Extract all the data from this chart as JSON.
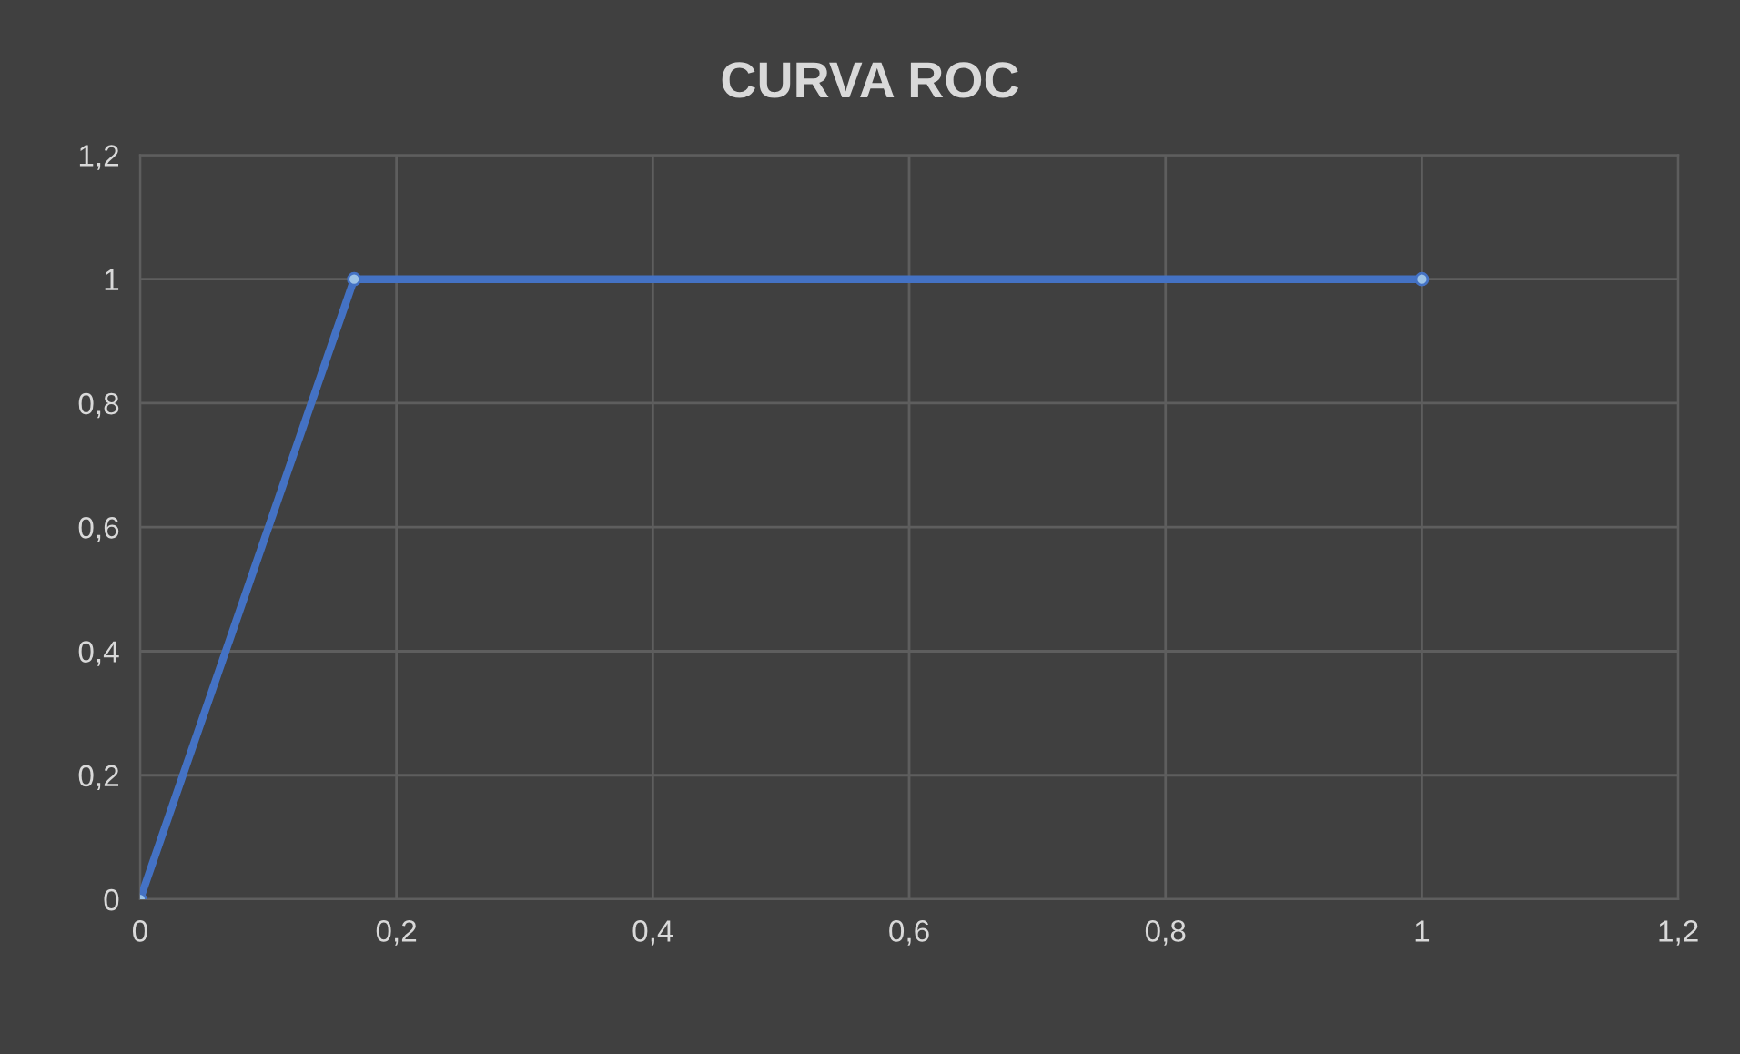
{
  "chart_data": {
    "type": "line",
    "title": "CURVA ROC",
    "series": [
      {
        "color": "#4472c4",
        "x": [
          0,
          0.167,
          1
        ],
        "values": [
          0,
          1,
          1
        ]
      }
    ],
    "xlim": [
      0,
      1.2
    ],
    "xticks": [
      {
        "value": 0,
        "label": "0"
      },
      {
        "value": 0.2,
        "label": "0,2"
      },
      {
        "value": 0.4,
        "label": "0,4"
      },
      {
        "value": 0.6,
        "label": "0,6"
      },
      {
        "value": 0.8,
        "label": "0,8"
      },
      {
        "value": 1,
        "label": "1"
      },
      {
        "value": 1.2,
        "label": "1,2"
      }
    ],
    "ylim": [
      0,
      1.2
    ],
    "yticks": [
      {
        "value": 0,
        "label": "0"
      },
      {
        "value": 0.2,
        "label": "0,2"
      },
      {
        "value": 0.4,
        "label": "0,4"
      },
      {
        "value": 0.6,
        "label": "0,6"
      },
      {
        "value": 0.8,
        "label": "0,8"
      },
      {
        "value": 1,
        "label": "1"
      },
      {
        "value": 1.2,
        "label": "1,2"
      }
    ],
    "grid": true,
    "marker": "circle",
    "line_style": "solid"
  }
}
